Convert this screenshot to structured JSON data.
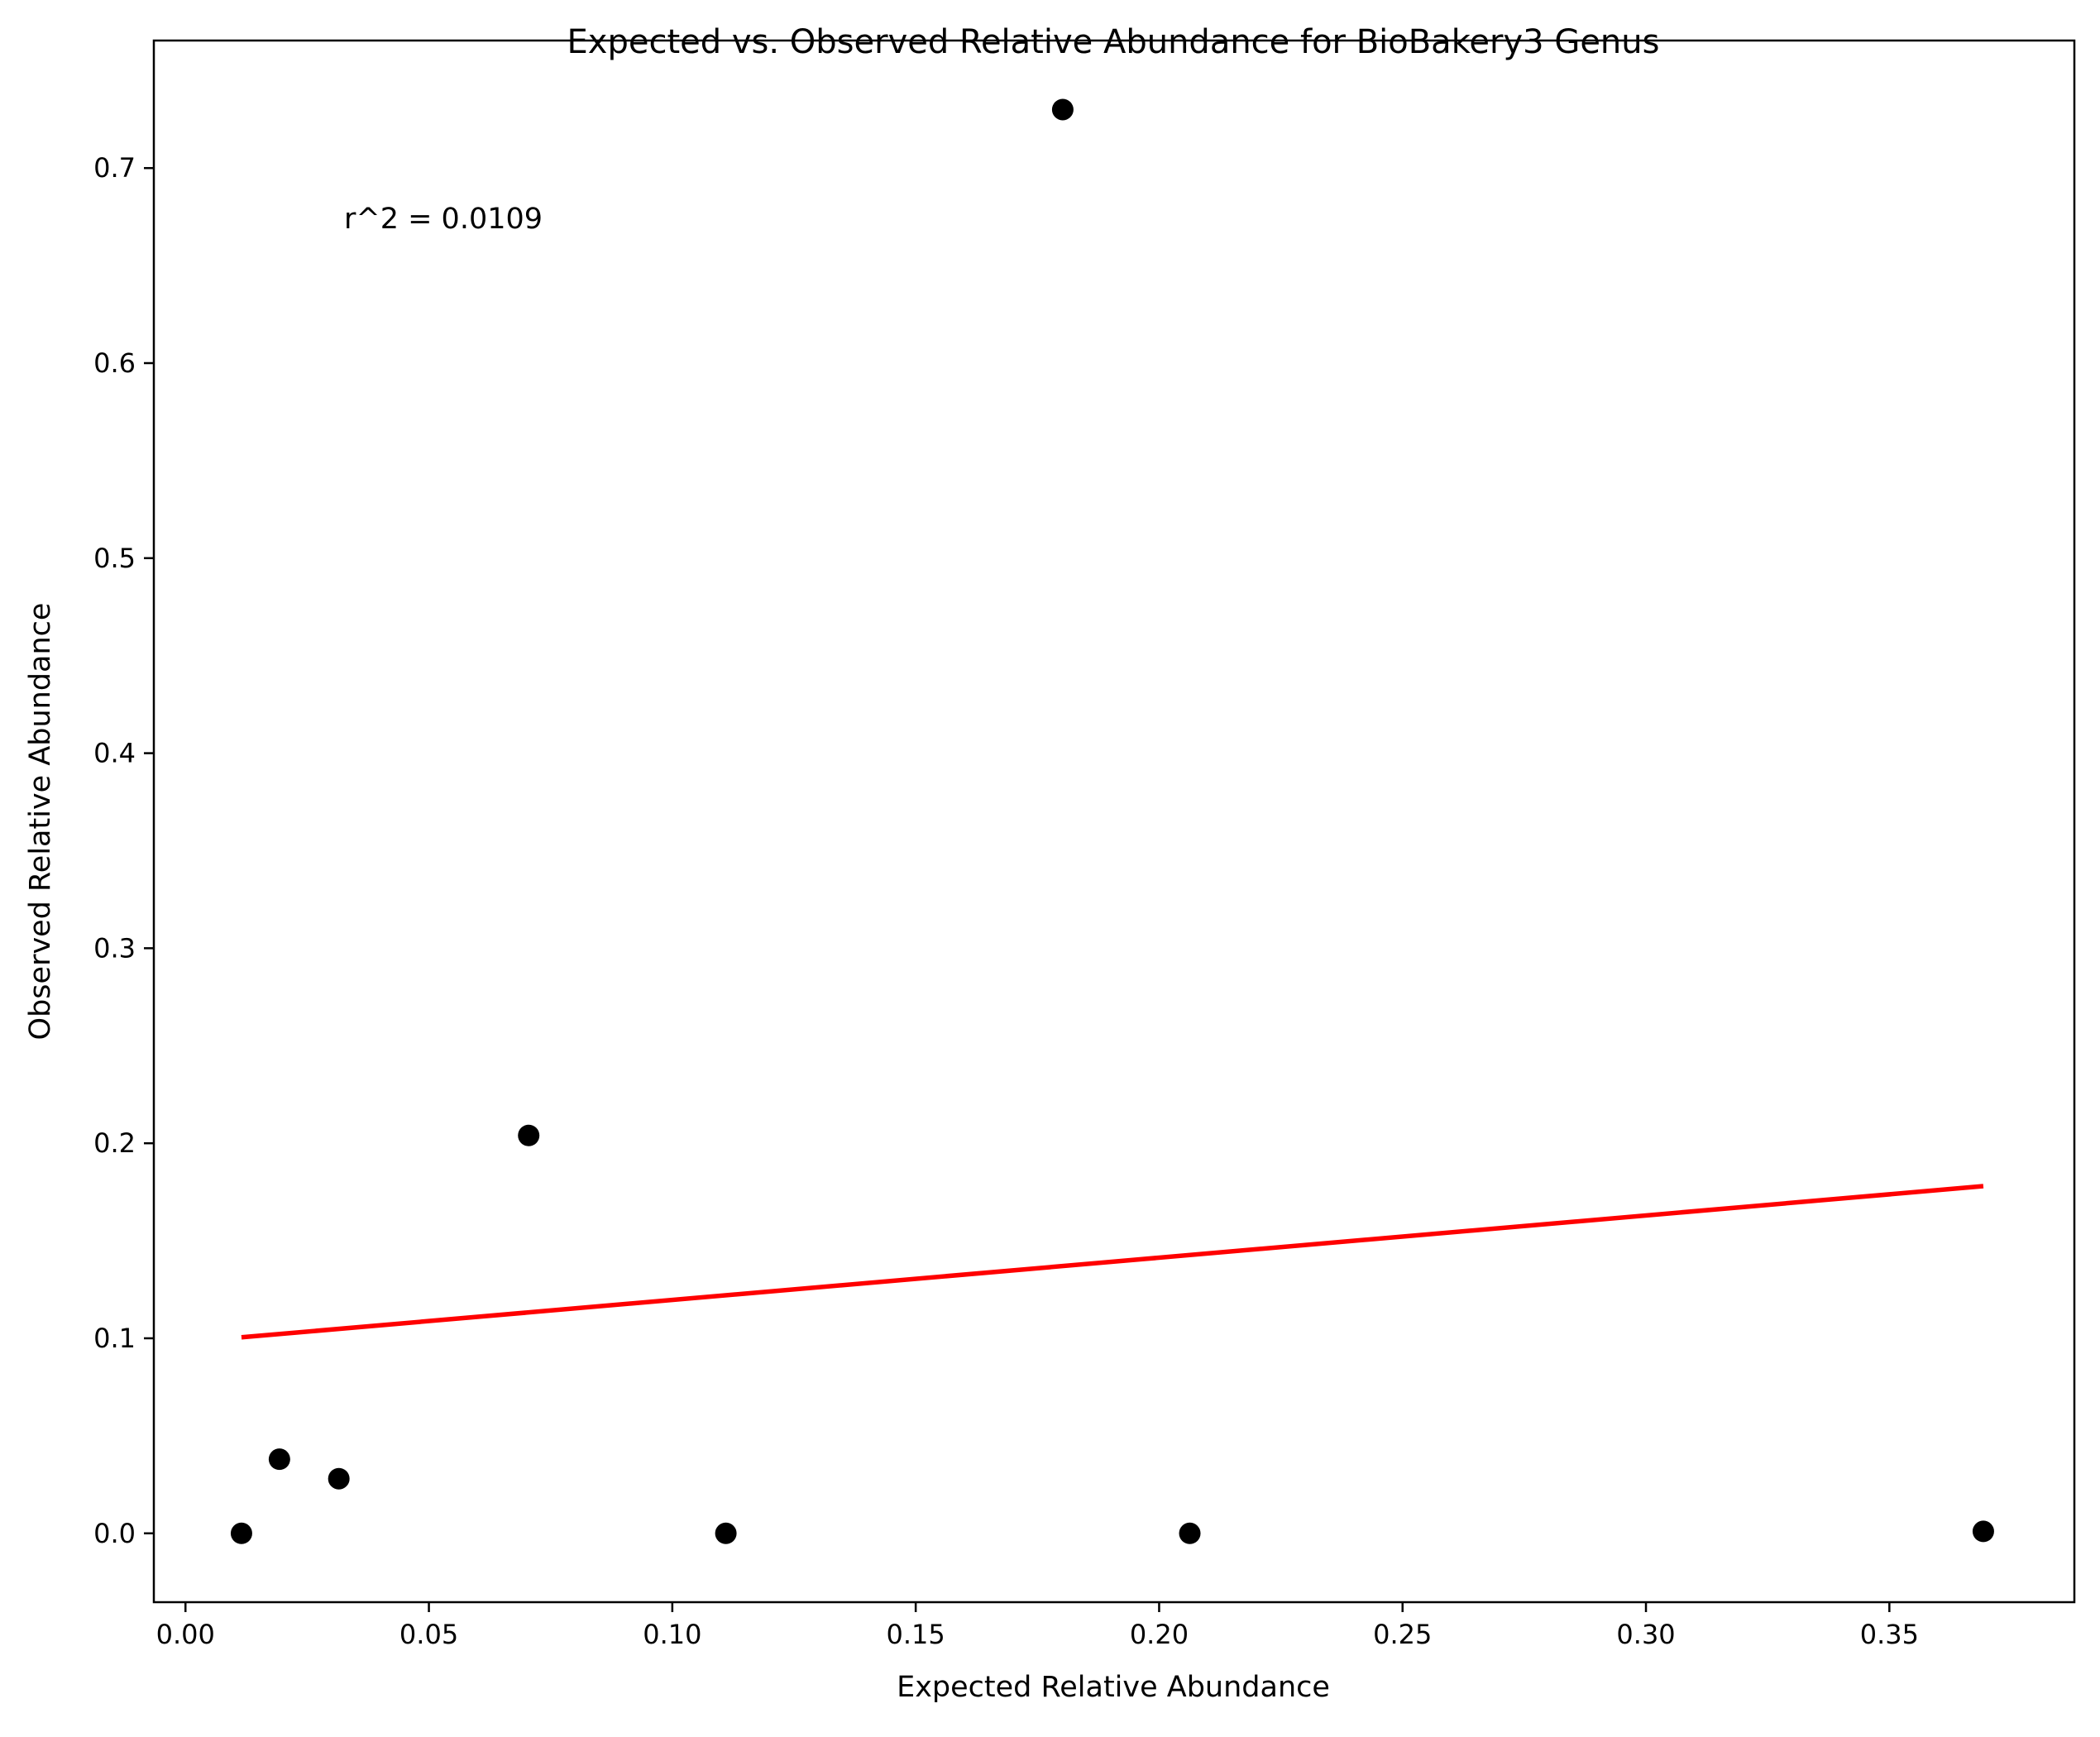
{
  "chart_data": {
    "type": "scatter",
    "title": "Expected vs. Observed Relative Abundance for BioBakery3 Genus",
    "xlabel": "Expected Relative Abundance",
    "ylabel": "Observed Relative Abundance",
    "xlim": [
      -0.0065,
      0.388
    ],
    "ylim": [
      -0.0353,
      0.7654
    ],
    "xticks": [
      0.0,
      0.05,
      0.1,
      0.15,
      0.2,
      0.25,
      0.3,
      0.35
    ],
    "xtick_labels": [
      "0.00",
      "0.05",
      "0.10",
      "0.15",
      "0.20",
      "0.25",
      "0.30",
      "0.35"
    ],
    "yticks": [
      0.0,
      0.1,
      0.2,
      0.3,
      0.4,
      0.5,
      0.6,
      0.7
    ],
    "ytick_labels": [
      "0.0",
      "0.1",
      "0.2",
      "0.3",
      "0.4",
      "0.5",
      "0.6",
      "0.7"
    ],
    "grid": false,
    "points": [
      {
        "x": 0.0115,
        "y": 0.0
      },
      {
        "x": 0.0193,
        "y": 0.038
      },
      {
        "x": 0.0315,
        "y": 0.028
      },
      {
        "x": 0.0705,
        "y": 0.204
      },
      {
        "x": 0.111,
        "y": 0.0
      },
      {
        "x": 0.1802,
        "y": 0.73
      },
      {
        "x": 0.2063,
        "y": 0.0
      },
      {
        "x": 0.3693,
        "y": 0.001
      }
    ],
    "point_color": "#000000",
    "fit_line": {
      "x": [
        0.0115,
        0.3693
      ],
      "y": [
        0.1005,
        0.178
      ],
      "color": "#ff0000"
    },
    "annotation": "r^2 = 0.0109"
  }
}
